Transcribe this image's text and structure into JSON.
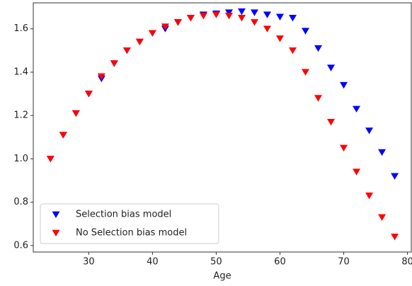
{
  "chart_data": {
    "type": "scatter",
    "marker": "triangle-down",
    "legend": "lower left",
    "xlabel": "Age",
    "x": [
      24,
      26,
      28,
      30,
      32,
      34,
      36,
      38,
      40,
      42,
      44,
      46,
      48,
      50,
      52,
      54,
      56,
      58,
      60,
      62,
      64,
      66,
      68,
      70,
      72,
      74,
      76,
      78
    ],
    "series": [
      {
        "name": "Selection bias model",
        "color": "#0000ff",
        "values": [
          1.0,
          1.11,
          1.21,
          1.3,
          1.37,
          1.44,
          1.5,
          1.54,
          1.58,
          1.6,
          1.63,
          1.65,
          1.665,
          1.67,
          1.675,
          1.68,
          1.675,
          1.665,
          1.655,
          1.65,
          1.59,
          1.51,
          1.42,
          1.34,
          1.23,
          1.13,
          1.03,
          0.92
        ]
      },
      {
        "name": "No Selection bias model",
        "color": "#ff0000",
        "values": [
          1.0,
          1.11,
          1.21,
          1.3,
          1.38,
          1.44,
          1.5,
          1.54,
          1.58,
          1.61,
          1.63,
          1.65,
          1.66,
          1.665,
          1.66,
          1.65,
          1.63,
          1.6,
          1.555,
          1.5,
          1.4,
          1.28,
          1.17,
          1.05,
          0.94,
          0.83,
          0.73,
          0.64
        ]
      }
    ],
    "xlim": [
      21.3,
      80.6
    ],
    "xticks": [
      30,
      40,
      50,
      60,
      70,
      80
    ],
    "ylim": [
      0.57,
      1.72
    ],
    "yticks": [
      0.6,
      0.8,
      {
        "value": 1,
        "label": "1.0"
      },
      1.2,
      1.4,
      1.6
    ]
  }
}
